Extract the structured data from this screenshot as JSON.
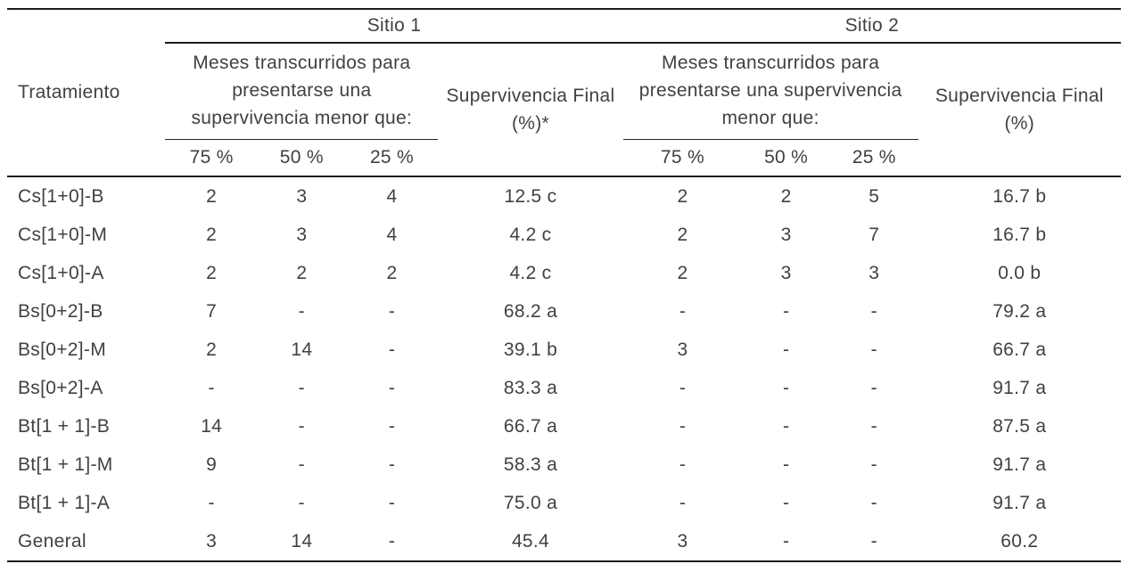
{
  "table": {
    "treatment_header": "Tratamiento",
    "sites": [
      {
        "title": "Sitio 1",
        "months_header": "Meses transcurridos para presentarse una supervivencia menor que:",
        "thresholds": [
          "75 %",
          "50 %",
          "25 %"
        ],
        "final_line1": "Supervivencia Final",
        "final_line2": "(%)*"
      },
      {
        "title": "Sitio 2",
        "months_header": "Meses transcurridos para presentarse una supervivencia menor que:",
        "thresholds": [
          "75 %",
          "50 %",
          "25 %"
        ],
        "final_line1": "Supervivencia Final",
        "final_line2": "(%)"
      }
    ],
    "rows": [
      {
        "treatment": "Cs[1+0]-B",
        "values": [
          "2",
          "3",
          "4",
          "12.5 c",
          "2",
          "2",
          "5",
          "16.7 b"
        ]
      },
      {
        "treatment": "Cs[1+0]-M",
        "values": [
          "2",
          "3",
          "4",
          "4.2 c",
          "2",
          "3",
          "7",
          "16.7 b"
        ]
      },
      {
        "treatment": "Cs[1+0]-A",
        "values": [
          "2",
          "2",
          "2",
          "4.2 c",
          "2",
          "3",
          "3",
          "0.0 b"
        ]
      },
      {
        "treatment": "Bs[0+2]-B",
        "values": [
          "7",
          "-",
          "-",
          "68.2 a",
          "-",
          "-",
          "-",
          "79.2 a"
        ]
      },
      {
        "treatment": "Bs[0+2]-M",
        "values": [
          "2",
          "14",
          "-",
          "39.1 b",
          "3",
          "-",
          "-",
          "66.7 a"
        ]
      },
      {
        "treatment": "Bs[0+2]-A",
        "values": [
          "-",
          "-",
          "-",
          "83.3 a",
          "-",
          "-",
          "-",
          "91.7 a"
        ]
      },
      {
        "treatment": "Bt[1 + 1]-B",
        "values": [
          "14",
          "-",
          "-",
          "66.7 a",
          "-",
          "-",
          "-",
          "87.5 a"
        ]
      },
      {
        "treatment": "Bt[1 + 1]-M",
        "values": [
          "9",
          "-",
          "-",
          "58.3 a",
          "-",
          "-",
          "-",
          "91.7 a"
        ]
      },
      {
        "treatment": "Bt[1 + 1]-A",
        "values": [
          "-",
          "-",
          "-",
          "75.0 a",
          "-",
          "-",
          "-",
          "91.7 a"
        ]
      },
      {
        "treatment": "General",
        "values": [
          "3",
          "14",
          "-",
          "45.4",
          "3",
          "-",
          "-",
          "60.2"
        ]
      }
    ]
  }
}
